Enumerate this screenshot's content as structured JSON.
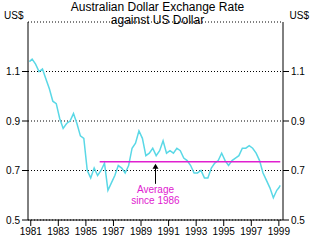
{
  "chart_data": {
    "type": "line",
    "title": "Australian Dollar Exchange Rate against US Dollar",
    "ylabel": "US$",
    "annotation": "Average since 1986",
    "xlim": [
      1980.8,
      1999.3
    ],
    "xticks": [
      1981,
      1983,
      1985,
      1987,
      1989,
      1991,
      1993,
      1995,
      1997,
      1999
    ],
    "ylim": [
      0.5,
      1.3
    ],
    "yticks": [
      0.5,
      0.7,
      0.9,
      1.1
    ],
    "grid": true,
    "series": [
      {
        "name": "Australian Dollar",
        "color": "#5ad8e6",
        "x": [
          1980.9,
          1981.1,
          1981.35,
          1981.6,
          1981.85,
          1982.1,
          1982.35,
          1982.6,
          1982.85,
          1983.1,
          1983.35,
          1983.6,
          1983.85,
          1984.1,
          1984.35,
          1984.6,
          1984.85,
          1985.1,
          1985.35,
          1985.6,
          1985.85,
          1986.1,
          1986.35,
          1986.6,
          1986.85,
          1987.1,
          1987.35,
          1987.6,
          1987.85,
          1988.1,
          1988.35,
          1988.6,
          1988.85,
          1989.1,
          1989.35,
          1989.6,
          1989.85,
          1990.1,
          1990.35,
          1990.6,
          1990.85,
          1991.1,
          1991.35,
          1991.6,
          1991.85,
          1992.1,
          1992.35,
          1992.6,
          1992.85,
          1993.1,
          1993.35,
          1993.6,
          1993.85,
          1994.1,
          1994.35,
          1994.6,
          1994.85,
          1995.1,
          1995.35,
          1995.6,
          1995.85,
          1996.1,
          1996.35,
          1996.6,
          1996.85,
          1997.1,
          1997.35,
          1997.6,
          1997.85,
          1998.1,
          1998.35,
          1998.6,
          1998.85,
          1999.0,
          1999.1
        ],
        "values": [
          1.14,
          1.15,
          1.13,
          1.1,
          1.11,
          1.07,
          1.03,
          0.98,
          0.97,
          0.91,
          0.87,
          0.89,
          0.9,
          0.93,
          0.89,
          0.84,
          0.83,
          0.7,
          0.67,
          0.71,
          0.68,
          0.7,
          0.73,
          0.62,
          0.65,
          0.68,
          0.72,
          0.71,
          0.69,
          0.72,
          0.79,
          0.81,
          0.86,
          0.83,
          0.76,
          0.77,
          0.79,
          0.76,
          0.78,
          0.82,
          0.77,
          0.78,
          0.77,
          0.79,
          0.78,
          0.75,
          0.74,
          0.72,
          0.69,
          0.69,
          0.7,
          0.67,
          0.67,
          0.71,
          0.73,
          0.74,
          0.77,
          0.74,
          0.72,
          0.74,
          0.75,
          0.76,
          0.79,
          0.79,
          0.8,
          0.79,
          0.77,
          0.74,
          0.69,
          0.66,
          0.63,
          0.59,
          0.62,
          0.63,
          0.64
        ]
      },
      {
        "name": "Average since 1986",
        "color": "#e020d0",
        "x": [
          1986,
          1999.1
        ],
        "values": [
          0.735,
          0.735
        ]
      }
    ]
  }
}
